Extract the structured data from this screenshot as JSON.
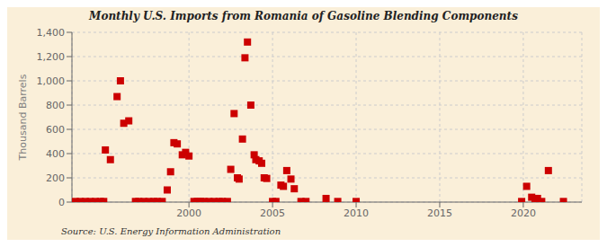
{
  "chart_data": {
    "type": "scatter",
    "title": "Monthly U.S. Imports from Romania of Gasoline Blending Components",
    "ylabel": "Thousand Barrels",
    "annotation": "Source: U.S. Energy Information Administration",
    "color": "#cc0000",
    "marker": "square",
    "grid": true,
    "xlim": [
      1993.0,
      2023.5
    ],
    "xticks": [
      2000,
      2005,
      2010,
      2015,
      2020
    ],
    "ylim": [
      0,
      1400
    ],
    "yticks": [
      0,
      200,
      400,
      600,
      800,
      {
        "value": 1000,
        "label": "1,000"
      },
      {
        "value": 1200,
        "label": "1,200"
      },
      {
        "value": 1400,
        "label": "1,400"
      }
    ],
    "x": [
      1993.2,
      1993.5,
      1993.8,
      1994.1,
      1994.4,
      1994.7,
      1994.9,
      1995.0,
      1995.3,
      1995.7,
      1995.9,
      1996.1,
      1996.4,
      1996.8,
      1997.0,
      1997.3,
      1997.6,
      1997.9,
      1998.1,
      1998.4,
      1998.7,
      1998.9,
      1999.1,
      1999.3,
      1999.6,
      1999.8,
      2000.0,
      2000.3,
      2000.5,
      2000.7,
      2000.9,
      2001.2,
      2001.5,
      2001.8,
      2002.0,
      2002.3,
      2002.5,
      2002.7,
      2002.9,
      2003.0,
      2003.2,
      2003.35,
      2003.5,
      2003.7,
      2003.9,
      2004.0,
      2004.2,
      2004.35,
      2004.5,
      2004.65,
      2005.0,
      2005.2,
      2005.5,
      2005.65,
      2005.85,
      2006.1,
      2006.3,
      2006.7,
      2007.0,
      2008.2,
      2008.9,
      2010.0,
      2019.9,
      2020.2,
      2020.5,
      2020.7,
      2020.85,
      2021.1,
      2021.5,
      2022.4
    ],
    "values": [
      5,
      5,
      5,
      5,
      5,
      5,
      5,
      430,
      350,
      870,
      1000,
      650,
      670,
      5,
      5,
      5,
      5,
      5,
      5,
      5,
      100,
      250,
      490,
      480,
      390,
      410,
      380,
      5,
      5,
      5,
      5,
      5,
      5,
      5,
      5,
      5,
      270,
      730,
      200,
      190,
      520,
      1190,
      1320,
      800,
      390,
      350,
      340,
      320,
      200,
      195,
      5,
      5,
      140,
      130,
      260,
      190,
      110,
      5,
      5,
      30,
      5,
      5,
      5,
      130,
      40,
      30,
      30,
      5,
      260,
      5
    ]
  }
}
